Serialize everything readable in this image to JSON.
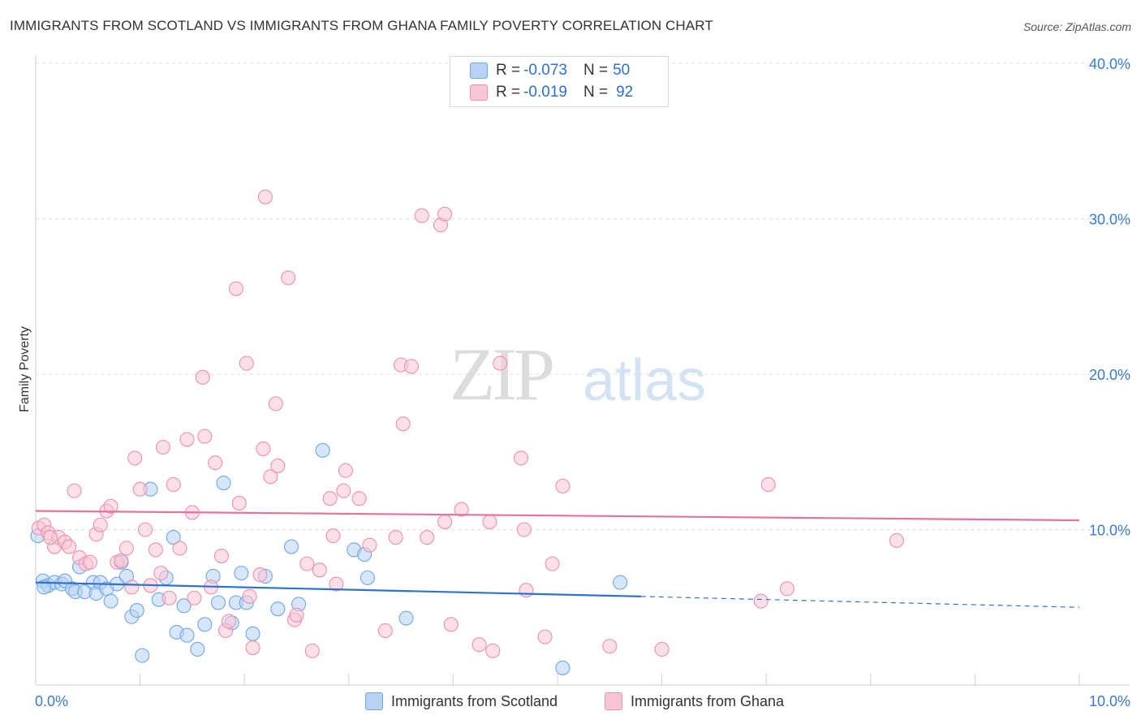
{
  "header": {
    "title": "IMMIGRANTS FROM SCOTLAND VS IMMIGRANTS FROM GHANA FAMILY POVERTY CORRELATION CHART",
    "source": "Source: ZipAtlas.com"
  },
  "watermark": {
    "zip": "ZIP",
    "atlas": "atlas"
  },
  "stats": {
    "rows": [
      {
        "r_label": "R = ",
        "r_value": "-0.073",
        "n_label": "N = ",
        "n_value": "50",
        "color": "#6fa8e6",
        "fill": "#b7d2f3"
      },
      {
        "r_label": "R = ",
        "r_value": "-0.019",
        "n_label": "N = ",
        "n_value": "92",
        "color": "#ee8fac",
        "fill": "#f8c6d6"
      }
    ]
  },
  "legend": {
    "items": [
      {
        "label": "Immigrants from Scotland",
        "color": "#6fa8e6",
        "fill": "#b7d2f3"
      },
      {
        "label": "Immigrants from Ghana",
        "color": "#ee8fac",
        "fill": "#f8c6d6"
      }
    ]
  },
  "chart_data": {
    "type": "scatter",
    "title": "IMMIGRANTS FROM SCOTLAND VS IMMIGRANTS FROM GHANA FAMILY POVERTY CORRELATION CHART",
    "xlabel": "",
    "ylabel": "Family Poverty",
    "xlim": [
      0,
      10
    ],
    "ylim": [
      0,
      40
    ],
    "x_ticks": [
      {
        "value": 0,
        "label": "0.0%"
      },
      {
        "value": 10,
        "label": "10.0%"
      }
    ],
    "y_ticks": [
      {
        "value": 10,
        "label": "10.0%"
      },
      {
        "value": 20,
        "label": "20.0%"
      },
      {
        "value": 30,
        "label": "30.0%"
      },
      {
        "value": 40,
        "label": "40.0%"
      }
    ],
    "grid": true,
    "series": [
      {
        "name": "Immigrants from Scotland",
        "color": "#6fa8e6",
        "fill": "#b7d2f3",
        "trend": {
          "x0": 0,
          "y0": 6.6,
          "x1": 5.8,
          "y1": 5.7,
          "x_dash_end": 10,
          "y_dash_end": 5.0
        },
        "points": [
          [
            0.02,
            9.6
          ],
          [
            0.07,
            6.7
          ],
          [
            0.12,
            6.4
          ],
          [
            0.18,
            6.6
          ],
          [
            0.25,
            6.5
          ],
          [
            0.28,
            6.7
          ],
          [
            0.35,
            6.2
          ],
          [
            0.38,
            6.0
          ],
          [
            0.42,
            7.6
          ],
          [
            0.47,
            6.0
          ],
          [
            0.55,
            6.6
          ],
          [
            0.58,
            5.9
          ],
          [
            0.62,
            6.6
          ],
          [
            0.68,
            6.2
          ],
          [
            0.72,
            5.4
          ],
          [
            0.78,
            6.5
          ],
          [
            0.82,
            7.9
          ],
          [
            0.87,
            7.0
          ],
          [
            0.92,
            4.4
          ],
          [
            0.97,
            4.8
          ],
          [
            1.02,
            1.9
          ],
          [
            1.1,
            12.6
          ],
          [
            1.18,
            5.5
          ],
          [
            1.25,
            6.9
          ],
          [
            1.32,
            9.5
          ],
          [
            1.35,
            3.4
          ],
          [
            1.42,
            5.1
          ],
          [
            1.45,
            3.2
          ],
          [
            1.55,
            2.3
          ],
          [
            1.62,
            3.9
          ],
          [
            1.7,
            7.0
          ],
          [
            1.75,
            5.3
          ],
          [
            1.8,
            13.0
          ],
          [
            1.88,
            4.0
          ],
          [
            1.92,
            5.3
          ],
          [
            1.97,
            7.2
          ],
          [
            2.02,
            5.3
          ],
          [
            2.08,
            3.3
          ],
          [
            2.2,
            7.0
          ],
          [
            2.32,
            4.9
          ],
          [
            2.45,
            8.9
          ],
          [
            2.52,
            5.2
          ],
          [
            2.75,
            15.1
          ],
          [
            3.05,
            8.7
          ],
          [
            3.15,
            8.4
          ],
          [
            3.18,
            6.9
          ],
          [
            3.55,
            4.3
          ],
          [
            5.05,
            1.1
          ],
          [
            5.6,
            6.6
          ],
          [
            0.08,
            6.3
          ]
        ]
      },
      {
        "name": "Immigrants from Ghana",
        "color": "#ee8fac",
        "fill": "#f8c6d6",
        "trend": {
          "x0": 0,
          "y0": 11.2,
          "x1": 10,
          "y1": 10.6
        },
        "points": [
          [
            0.03,
            10.1
          ],
          [
            0.08,
            10.3
          ],
          [
            0.12,
            9.8
          ],
          [
            0.18,
            8.9
          ],
          [
            0.22,
            9.5
          ],
          [
            0.28,
            9.2
          ],
          [
            0.32,
            8.9
          ],
          [
            0.37,
            12.5
          ],
          [
            0.42,
            8.2
          ],
          [
            0.48,
            7.8
          ],
          [
            0.52,
            7.9
          ],
          [
            0.58,
            9.7
          ],
          [
            0.62,
            10.3
          ],
          [
            0.68,
            11.2
          ],
          [
            0.72,
            11.5
          ],
          [
            0.78,
            7.9
          ],
          [
            0.82,
            8.0
          ],
          [
            0.87,
            8.8
          ],
          [
            0.92,
            6.3
          ],
          [
            0.95,
            14.6
          ],
          [
            1.0,
            12.6
          ],
          [
            1.05,
            10.0
          ],
          [
            1.1,
            6.4
          ],
          [
            1.15,
            8.7
          ],
          [
            1.2,
            7.2
          ],
          [
            1.22,
            15.3
          ],
          [
            1.28,
            5.6
          ],
          [
            1.32,
            12.9
          ],
          [
            1.38,
            8.8
          ],
          [
            1.45,
            15.8
          ],
          [
            1.5,
            11.1
          ],
          [
            1.52,
            5.6
          ],
          [
            1.6,
            19.8
          ],
          [
            1.62,
            16.0
          ],
          [
            1.68,
            6.3
          ],
          [
            1.72,
            14.3
          ],
          [
            1.78,
            8.3
          ],
          [
            1.82,
            3.5
          ],
          [
            1.85,
            4.1
          ],
          [
            1.92,
            25.5
          ],
          [
            1.95,
            11.7
          ],
          [
            2.02,
            20.7
          ],
          [
            2.05,
            5.7
          ],
          [
            2.08,
            2.4
          ],
          [
            2.15,
            7.1
          ],
          [
            2.18,
            15.2
          ],
          [
            2.2,
            31.4
          ],
          [
            2.25,
            13.4
          ],
          [
            2.3,
            18.1
          ],
          [
            2.32,
            14.1
          ],
          [
            2.42,
            26.2
          ],
          [
            2.48,
            4.2
          ],
          [
            2.5,
            4.5
          ],
          [
            2.6,
            7.8
          ],
          [
            2.65,
            2.2
          ],
          [
            2.72,
            7.4
          ],
          [
            2.82,
            12.0
          ],
          [
            2.85,
            9.6
          ],
          [
            2.88,
            6.5
          ],
          [
            2.95,
            12.5
          ],
          [
            2.97,
            13.8
          ],
          [
            3.1,
            12.0
          ],
          [
            3.2,
            9.0
          ],
          [
            3.35,
            3.5
          ],
          [
            3.45,
            9.5
          ],
          [
            3.5,
            20.6
          ],
          [
            3.52,
            16.8
          ],
          [
            3.6,
            20.5
          ],
          [
            3.7,
            30.2
          ],
          [
            3.75,
            9.5
          ],
          [
            3.88,
            29.6
          ],
          [
            3.92,
            30.3
          ],
          [
            3.92,
            10.5
          ],
          [
            3.98,
            3.9
          ],
          [
            4.08,
            11.3
          ],
          [
            4.25,
            2.6
          ],
          [
            4.35,
            10.5
          ],
          [
            4.38,
            2.2
          ],
          [
            4.45,
            20.7
          ],
          [
            4.65,
            14.6
          ],
          [
            4.7,
            6.1
          ],
          [
            4.68,
            10.0
          ],
          [
            4.88,
            3.1
          ],
          [
            4.95,
            7.8
          ],
          [
            5.05,
            12.8
          ],
          [
            5.5,
            2.5
          ],
          [
            6.0,
            2.3
          ],
          [
            6.95,
            5.4
          ],
          [
            7.02,
            12.9
          ],
          [
            7.2,
            6.2
          ],
          [
            8.25,
            9.3
          ],
          [
            0.14,
            9.5
          ]
        ]
      }
    ]
  }
}
